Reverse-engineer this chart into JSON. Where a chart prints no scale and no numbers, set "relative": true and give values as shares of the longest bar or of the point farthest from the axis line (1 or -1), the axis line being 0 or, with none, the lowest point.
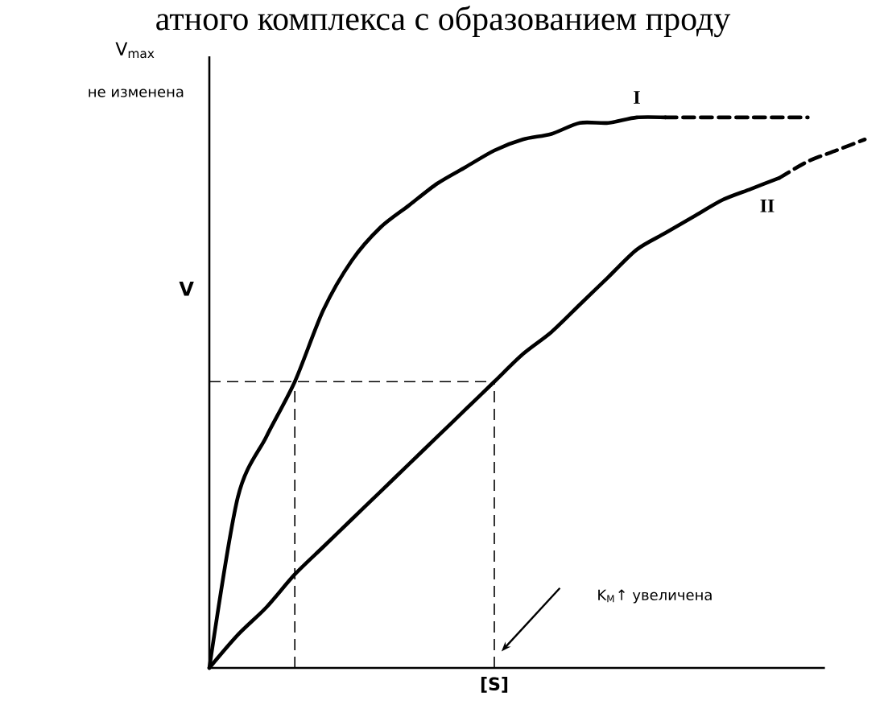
{
  "chart_data": {
    "type": "line",
    "relative": true,
    "marker": "none",
    "title": "атного комплекса с образованием проду",
    "xlabel": "[S]",
    "ylabel": "V",
    "annotations": [
      "V$_{max}$",
      "не изменена",
      "K$_{M}$↑ увеличена"
    ],
    "categories": [
      null,
      null,
      null,
      null,
      null,
      null,
      null,
      null,
      null,
      null,
      null,
      null,
      null,
      null,
      null,
      null,
      null,
      null,
      null,
      null,
      null,
      null,
      null,
      null
    ],
    "series": [
      {
        "name": "I",
        "color": "#000000",
        "line_style": "solid",
        "values": [
          0,
          0.31,
          0.42,
          0.52,
          0.65,
          0.74,
          0.8,
          0.84,
          0.88,
          0.91,
          0.94,
          0.96,
          0.97,
          0.99,
          0.99,
          1,
          1,
          null,
          null,
          null,
          null,
          null,
          null,
          null
        ]
      },
      {
        "color": "#000000",
        "line_style": "dashed",
        "values": [
          null,
          null,
          null,
          null,
          null,
          null,
          null,
          null,
          null,
          null,
          null,
          null,
          null,
          null,
          null,
          null,
          1,
          1,
          1,
          1,
          1,
          1,
          null,
          null
        ]
      },
      {
        "name": "II",
        "color": "#000000",
        "line_style": "solid",
        "values": [
          0,
          0.06,
          0.11,
          0.17,
          0.22,
          0.27,
          0.32,
          0.37,
          0.42,
          0.47,
          0.52,
          0.57,
          0.61,
          0.66,
          0.71,
          0.76,
          0.79,
          0.82,
          0.85,
          0.87,
          0.89,
          null,
          null,
          null
        ]
      },
      {
        "color": "#000000",
        "line_style": "dashed",
        "values": [
          null,
          null,
          null,
          null,
          null,
          null,
          null,
          null,
          null,
          null,
          null,
          null,
          null,
          null,
          null,
          null,
          null,
          null,
          null,
          null,
          0.89,
          0.92,
          0.94,
          0.96
        ]
      }
    ],
    "ref_lines": [
      {
        "axis": "y",
        "value": 0.52,
        "color": "#000000",
        "line_style": "dashed"
      }
    ]
  }
}
